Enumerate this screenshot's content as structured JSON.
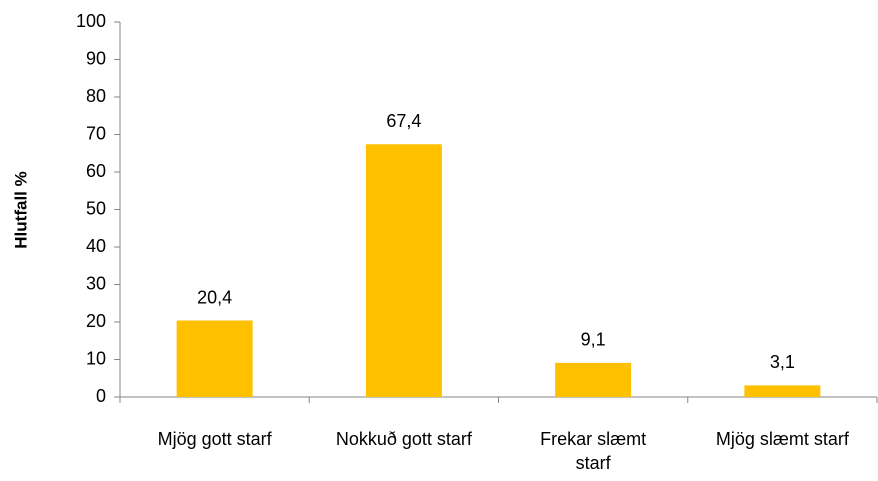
{
  "chart_data": {
    "type": "bar",
    "y_label": "Hlutfall %",
    "categories": [
      "Mjög gott starf",
      "Nokkuð gott starf",
      "Frekar slæmt starf",
      "Mjög slæmt starf"
    ],
    "values": [
      20.4,
      67.4,
      9.1,
      3.1
    ],
    "value_labels": [
      "20,4",
      "67,4",
      "9,1",
      "3,1"
    ],
    "color": "#ffc000",
    "ylim": [
      0,
      100
    ],
    "yticks": [
      0,
      10,
      20,
      30,
      40,
      50,
      60,
      70,
      80,
      90,
      100
    ],
    "grid": false
  }
}
